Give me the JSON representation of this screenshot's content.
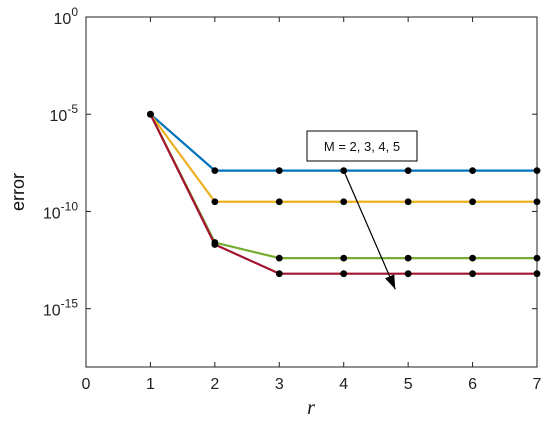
{
  "chart_data": {
    "type": "line",
    "title": "",
    "xlabel": "r",
    "ylabel": "error",
    "xlim": [
      0,
      7
    ],
    "ylim_exp": [
      -18,
      0
    ],
    "yscale": "log",
    "x_ticks": [
      "0",
      "1",
      "2",
      "3",
      "4",
      "5",
      "6",
      "7"
    ],
    "y_ticks": [
      {
        "base": "10",
        "exp": "0",
        "value_exp": 0
      },
      {
        "base": "10",
        "exp": "-5",
        "value_exp": -5
      },
      {
        "base": "10",
        "exp": "-10",
        "value_exp": -10
      },
      {
        "base": "10",
        "exp": "-15",
        "value_exp": -15
      }
    ],
    "grid": false,
    "x": [
      1,
      2,
      3,
      4,
      5,
      6,
      7
    ],
    "series": [
      {
        "color": "#0072BD",
        "y_exp": [
          -5,
          -7.9,
          -7.9,
          -7.9,
          -7.9,
          -7.9,
          -7.9
        ]
      },
      {
        "color": "#EDB120",
        "y_exp": [
          -5,
          -9.5,
          -9.5,
          -9.5,
          -9.5,
          -9.5,
          -9.5
        ]
      },
      {
        "color": "#77AC30",
        "y_exp": [
          -5,
          -11.6,
          -12.4,
          -12.4,
          -12.4,
          -12.4,
          -12.4
        ]
      },
      {
        "color": "#A2142F",
        "y_exp": [
          -5,
          -11.7,
          -13.2,
          -13.2,
          -13.2,
          -13.2,
          -13.2
        ]
      }
    ],
    "annotation": {
      "text": "M = 2, 3, 4, 5",
      "arrow_from": [
        4,
        -7.9
      ],
      "arrow_to": [
        4.8,
        -14.0
      ]
    }
  }
}
